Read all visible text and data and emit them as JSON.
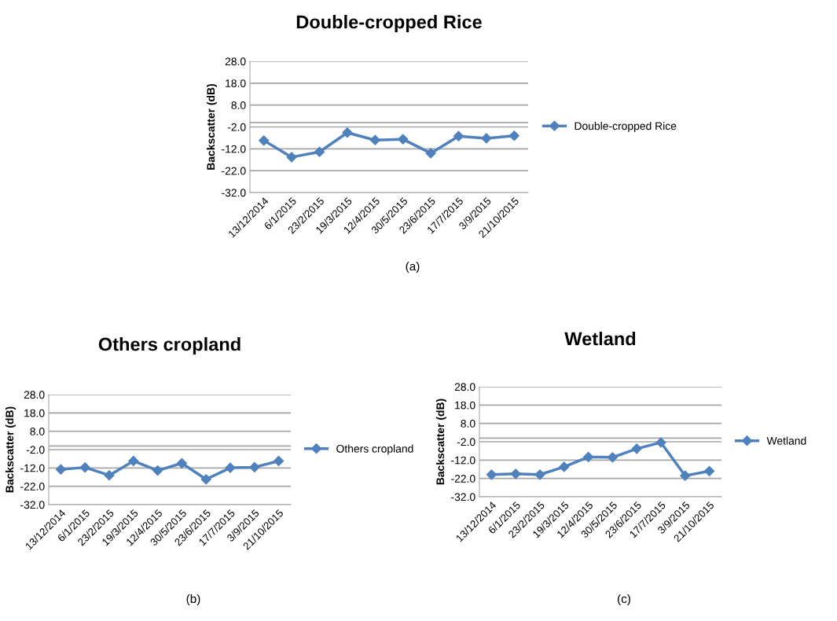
{
  "chart_data": [
    {
      "type": "line",
      "title": "Double-cropped Rice",
      "ylabel": "Backscatter (dB)",
      "categories": [
        "13/12/2014",
        "6/1/2015",
        "23/2/2015",
        "19/3/2015",
        "12/4/2015",
        "30/5/2015",
        "23/6/2015",
        "17/7/2015",
        "3/9/2015",
        "21/10/2015"
      ],
      "series": [
        {
          "name": "Double-cropped Rice",
          "color": "#4f81bd",
          "values": [
            -8.2,
            -15.8,
            -13.4,
            -4.6,
            -8.0,
            -7.6,
            -14.0,
            -6.2,
            -7.2,
            -6.0
          ]
        }
      ],
      "ylim": [
        -32,
        28
      ],
      "yticks": [
        {
          "value": -32,
          "label": "-32.0"
        },
        {
          "value": -22,
          "label": "-22.0"
        },
        {
          "value": -12,
          "label": "-12.0"
        },
        {
          "value": -2,
          "label": "-2.0"
        },
        {
          "value": 8,
          "label": "8.0"
        },
        {
          "value": 18,
          "label": "18.0"
        },
        {
          "value": 28,
          "label": "28.0"
        }
      ],
      "ref_lines": [
        {
          "axis": "y",
          "value": 0,
          "label": null,
          "color": "#a6a6a6"
        }
      ],
      "grid": "y",
      "legend": "right",
      "marker": "diamond",
      "line_style": "solid",
      "annotations": [
        "(a)"
      ]
    },
    {
      "type": "line",
      "title": "Others cropland",
      "ylabel": "Backscatter (dB)",
      "categories": [
        "13/12/2014",
        "6/1/2015",
        "23/2/2015",
        "19/3/2015",
        "12/4/2015",
        "30/5/2015",
        "23/6/2015",
        "17/7/2015",
        "3/9/2015",
        "21/10/2015"
      ],
      "series": [
        {
          "name": "Others cropland",
          "color": "#4f81bd",
          "values": [
            -12.8,
            -11.7,
            -16.0,
            -8.2,
            -13.4,
            -9.4,
            -18.2,
            -11.9,
            -11.6,
            -8.2
          ]
        }
      ],
      "ylim": [
        -32,
        28
      ],
      "yticks": [
        {
          "value": -32,
          "label": "-32.0"
        },
        {
          "value": -22,
          "label": "-22.0"
        },
        {
          "value": -12,
          "label": "-12.0"
        },
        {
          "value": -2,
          "label": "-2.0"
        },
        {
          "value": 8,
          "label": "8.0"
        },
        {
          "value": 18,
          "label": "18.0"
        },
        {
          "value": 28,
          "label": "28.0"
        }
      ],
      "ref_lines": [
        {
          "axis": "y",
          "value": 0,
          "label": null,
          "color": "#a6a6a6"
        }
      ],
      "grid": "y",
      "legend": "right",
      "marker": "diamond",
      "line_style": "solid",
      "annotations": [
        "(b)"
      ]
    },
    {
      "type": "line",
      "title": "Wetland",
      "ylabel": "Backscatter (dB)",
      "categories": [
        "13/12/2014",
        "6/1/2015",
        "23/2/2015",
        "19/3/2015",
        "12/4/2015",
        "30/5/2015",
        "23/6/2015",
        "17/7/2015",
        "3/9/2015",
        "21/10/2015"
      ],
      "series": [
        {
          "name": "Wetland",
          "color": "#4f81bd",
          "values": [
            -19.9,
            -19.5,
            -19.9,
            -15.7,
            -10.3,
            -10.5,
            -5.8,
            -2.4,
            -20.5,
            -18.0
          ]
        }
      ],
      "ylim": [
        -32,
        28
      ],
      "yticks": [
        {
          "value": -32,
          "label": "-32.0"
        },
        {
          "value": -22,
          "label": "-22.0"
        },
        {
          "value": -12,
          "label": "-12.0"
        },
        {
          "value": -2,
          "label": "-2.0"
        },
        {
          "value": 8,
          "label": "8.0"
        },
        {
          "value": 18,
          "label": "18.0"
        },
        {
          "value": 28,
          "label": "28.0"
        }
      ],
      "ref_lines": [
        {
          "axis": "y",
          "value": 0,
          "label": null,
          "color": "#a6a6a6"
        }
      ],
      "grid": "y",
      "legend": "right",
      "marker": "diamond",
      "line_style": "solid",
      "annotations": [
        "(c)"
      ]
    }
  ]
}
